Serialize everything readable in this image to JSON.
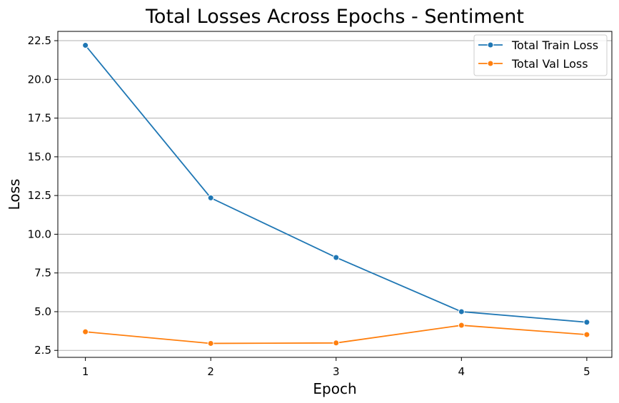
{
  "chart_data": {
    "type": "line",
    "title": "Total Losses Across Epochs - Sentiment",
    "xlabel": "Epoch",
    "ylabel": "Loss",
    "x": [
      1,
      2,
      3,
      4,
      5
    ],
    "xticks": [
      1,
      2,
      3,
      4,
      5
    ],
    "xlim": [
      0.78,
      5.2
    ],
    "yticks": [
      2.5,
      5.0,
      7.5,
      10.0,
      12.5,
      15.0,
      17.5,
      20.0,
      22.5
    ],
    "ytick_labels": [
      "2.5",
      "5.0",
      "7.5",
      "10.0",
      "12.5",
      "15.0",
      "17.5",
      "20.0",
      "22.5"
    ],
    "ylim": [
      2.05,
      23.1
    ],
    "grid": "horizontal",
    "legend_position": "top-right",
    "series": [
      {
        "name": "Total Train Loss",
        "color": "#1f77b4",
        "marker": "circle",
        "values": [
          22.2,
          12.35,
          8.5,
          5.0,
          4.32
        ]
      },
      {
        "name": "Total Val Loss",
        "color": "#ff7f0e",
        "marker": "circle",
        "values": [
          3.7,
          2.95,
          2.98,
          4.12,
          3.52
        ]
      }
    ]
  }
}
